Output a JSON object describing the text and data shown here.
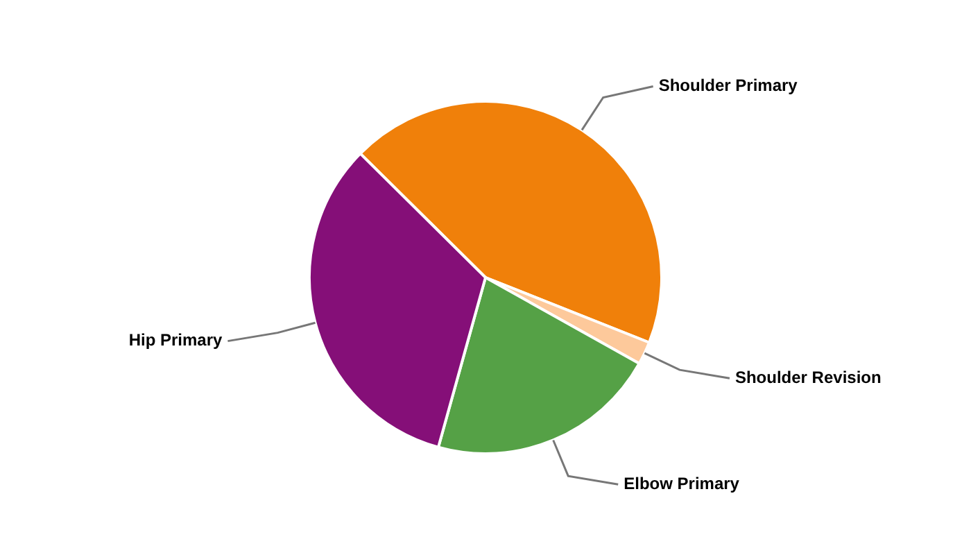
{
  "chart_data": {
    "type": "pie",
    "categories": [
      "Shoulder Primary",
      "Shoulder Revision",
      "Elbow Primary",
      "Hip Primary"
    ],
    "values": [
      43.6,
      2.1,
      21.2,
      33.1
    ],
    "colors": [
      "#f0800a",
      "#fdc99b",
      "#55a146",
      "#850f78"
    ],
    "legend": false
  }
}
